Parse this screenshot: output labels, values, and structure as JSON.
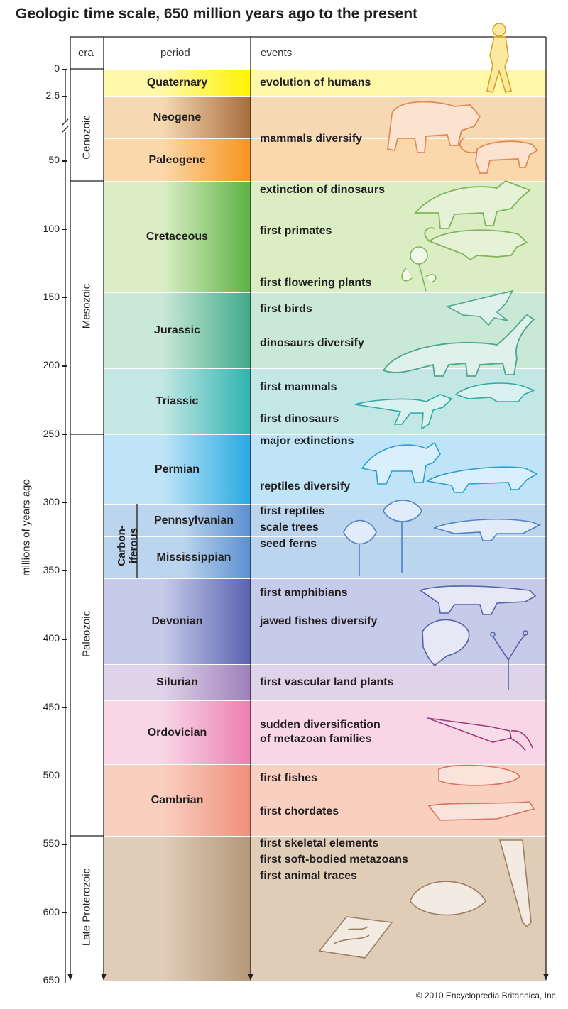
{
  "title": "Geologic time scale, 650 million years ago to the present",
  "headers": {
    "era": "era",
    "period": "period",
    "events": "events"
  },
  "axis": {
    "label": "millions of years ago",
    "ticks": [
      {
        "label": "0",
        "ma": 0
      },
      {
        "label": "2.6",
        "ma": 2.6
      },
      {
        "label": "50",
        "ma": 50
      },
      {
        "label": "100",
        "ma": 100
      },
      {
        "label": "150",
        "ma": 150
      },
      {
        "label": "200",
        "ma": 200
      },
      {
        "label": "250",
        "ma": 250
      },
      {
        "label": "300",
        "ma": 300
      },
      {
        "label": "350",
        "ma": 350
      },
      {
        "label": "400",
        "ma": 400
      },
      {
        "label": "450",
        "ma": 450
      },
      {
        "label": "500",
        "ma": 500
      },
      {
        "label": "550",
        "ma": 550
      },
      {
        "label": "600",
        "ma": 600
      },
      {
        "label": "650",
        "ma": 650
      }
    ]
  },
  "eras": [
    {
      "name": "Cenozoic"
    },
    {
      "name": "Mesozoic"
    },
    {
      "name": "Paleozoic"
    },
    {
      "name": "Late Proterozoic"
    }
  ],
  "carboniferous": {
    "line1": "Carbon-",
    "line2": "iferous"
  },
  "periods": [
    {
      "name": "Quaternary",
      "color": "#fff8a8",
      "accent": "#fff200"
    },
    {
      "name": "Neogene",
      "color": "#f6d9b2",
      "accent": "#a86c3c"
    },
    {
      "name": "Paleogene",
      "color": "#fbd8ab",
      "accent": "#f7941d"
    },
    {
      "name": "Cretaceous",
      "color": "#dbeec3",
      "accent": "#5cb245"
    },
    {
      "name": "Jurassic",
      "color": "#c9e8d6",
      "accent": "#3fa98a"
    },
    {
      "name": "Triassic",
      "color": "#c2e7e4",
      "accent": "#2eb3b0"
    },
    {
      "name": "Permian",
      "color": "#bfe4f7",
      "accent": "#27aae1"
    },
    {
      "name": "Pennsylvanian",
      "color": "#bcd5ee",
      "accent": "#5b8fd0"
    },
    {
      "name": "Mississippian",
      "color": "#bcd5ee",
      "accent": "#5b8fd0"
    },
    {
      "name": "Devonian",
      "color": "#c6cbe9",
      "accent": "#5a62b1"
    },
    {
      "name": "Silurian",
      "color": "#dfd3ea",
      "accent": "#9d7fbb"
    },
    {
      "name": "Ordovician",
      "color": "#f8d6e6",
      "accent": "#ec7fb1"
    },
    {
      "name": "Cambrian",
      "color": "#f9cfc0",
      "accent": "#f08f7a"
    },
    {
      "name": "Late Proterozoic",
      "color": "#e0cdb8",
      "accent": "#b5987a"
    }
  ],
  "events": [
    "evolution of humans",
    "mammals diversify",
    "extinction of dinosaurs",
    "first primates",
    "first flowering plants",
    "first birds",
    "dinosaurs diversify",
    "first mammals",
    "first dinosaurs",
    "major extinctions",
    "reptiles diversify",
    "first reptiles",
    "scale trees",
    "seed ferns",
    "first amphibians",
    "jawed fishes diversify",
    "first vascular land plants",
    "sudden diversification",
    "of metazoan families",
    "first fishes",
    "first chordates",
    "first skeletal elements",
    "first soft-bodied metazoans",
    "first animal traces"
  ],
  "icons": [
    "human-icon",
    "rhinoceros-icon",
    "cat-icon",
    "triceratops-icon",
    "primate-icon",
    "flower-icon",
    "bird-icon",
    "sauropod-icon",
    "dinosaur-icon",
    "mammal-icon",
    "reptile-icon",
    "lizard-icon",
    "scale-tree-icon",
    "seed-fern-icon",
    "amphibian-icon",
    "fish-icon",
    "land-plant-icon",
    "cephalopod-icon",
    "fish-fossil-icon",
    "chordate-icon",
    "shell-fossil-icon",
    "trace-fossil-icon",
    "cone-fossil-icon"
  ],
  "copyright": "© 2010 Encyclopædia Britannica, Inc."
}
